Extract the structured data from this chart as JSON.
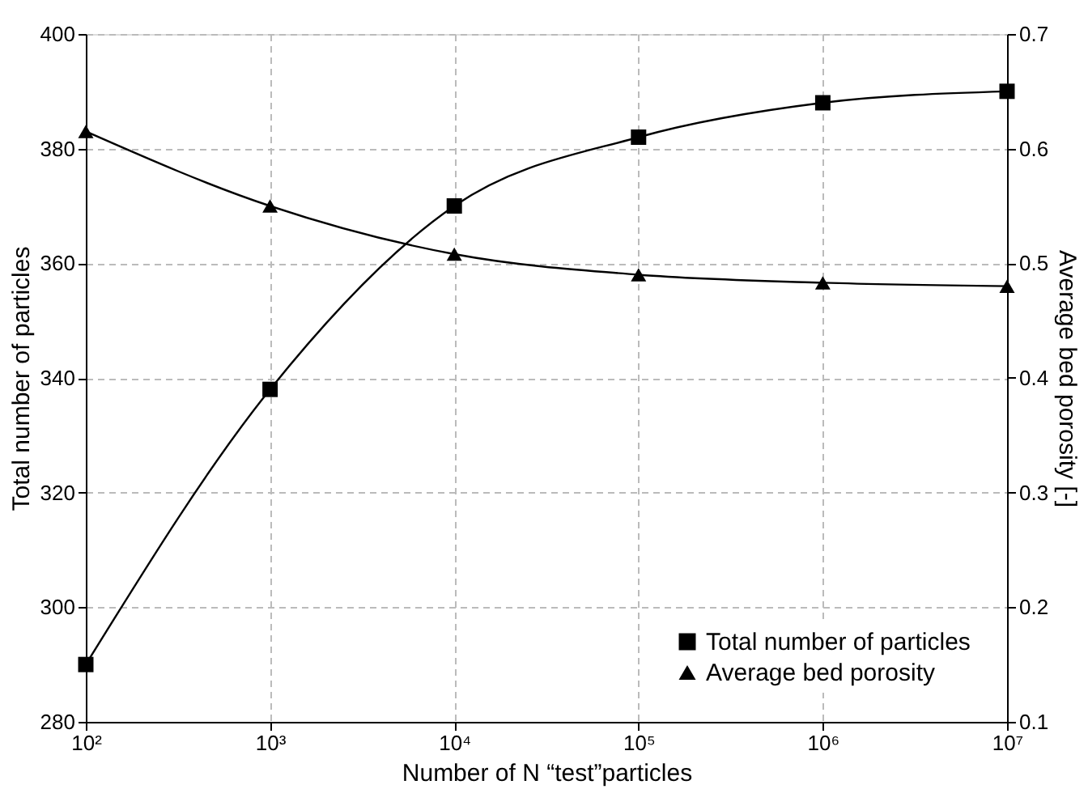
{
  "chart_data": {
    "type": "line",
    "xlabel": "Number of N “test”particles",
    "ylabel": "Total  number of particles",
    "y2label": "Average bed porosity [-]",
    "x": [
      100,
      1000,
      10000,
      100000,
      1000000,
      10000000
    ],
    "log": "x",
    "grid": true,
    "legend": "bottom right",
    "line_style": "solid",
    "xlim": [
      100,
      10000000
    ],
    "xticks": [
      {
        "value": 100,
        "label": "10²"
      },
      {
        "value": 1000,
        "label": "10³"
      },
      {
        "value": 10000,
        "label": "10⁴"
      },
      {
        "value": 100000,
        "label": "10⁵"
      },
      {
        "value": 1000000,
        "label": "10⁶"
      },
      {
        "value": 10000000,
        "label": "10⁷"
      }
    ],
    "ylim": [
      280,
      400
    ],
    "yticks": [
      280,
      300,
      320,
      340,
      360,
      380,
      400
    ],
    "y2lim": [
      0.1,
      0.7
    ],
    "y2ticks": [
      0.1,
      0.2,
      0.3,
      0.4,
      0.5,
      0.6,
      0.7
    ],
    "series": [
      {
        "name": "Total number of particles",
        "color": "#000000",
        "marker": "square",
        "values": [
          290,
          338,
          370,
          382,
          388,
          390
        ]
      },
      {
        "name": "Average bed porosity",
        "color": "#000000",
        "marker": "triangle",
        "axis": "y2",
        "values": [
          0.615,
          0.55,
          0.508,
          0.49,
          0.483,
          0.48
        ]
      }
    ]
  }
}
